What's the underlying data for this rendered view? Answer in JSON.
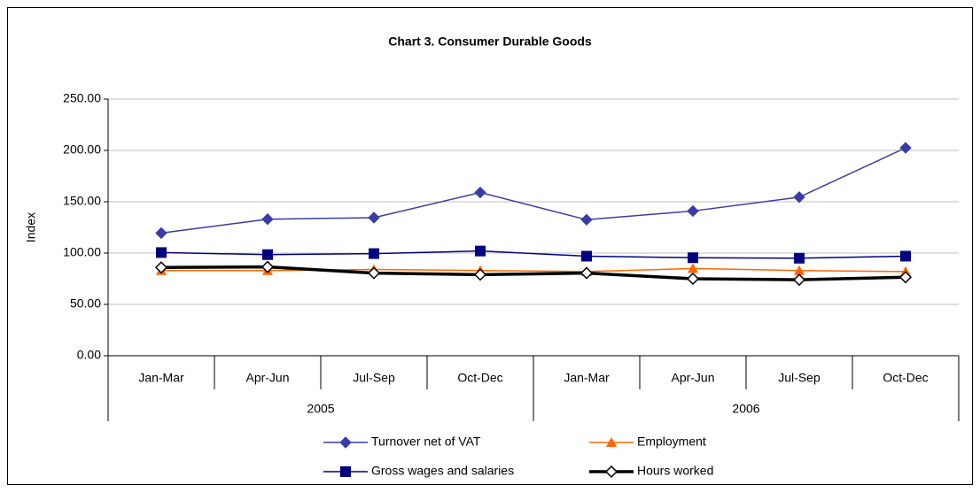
{
  "chart_data": {
    "type": "line",
    "title": "Chart 3.  Consumer Durable Goods",
    "y_label": "Index",
    "categories": [
      "Jan-Mar",
      "Apr-Jun",
      "Jul-Sep",
      "Oct-Dec",
      "Jan-Mar",
      "Apr-Jun",
      "Jul-Sep",
      "Oct-Dec"
    ],
    "category_groups": [
      "2005",
      "2006"
    ],
    "series": [
      {
        "name": "Turnover net of VAT",
        "color": "#3b3ba8",
        "marker": "diamond",
        "values": [
          119.5,
          133,
          134.5,
          159,
          132.5,
          141,
          154.5,
          202.5
        ]
      },
      {
        "name": "Employment",
        "color": "#ff6600",
        "marker": "triangle",
        "values": [
          83,
          83,
          84,
          83,
          82,
          85,
          83,
          82
        ]
      },
      {
        "name": "Gross wages and salaries",
        "color": "#000080",
        "marker": "square",
        "values": [
          100.5,
          98.5,
          99.5,
          102,
          97,
          95.5,
          95,
          97
        ]
      },
      {
        "name": "Hours worked",
        "color": "#000000",
        "marker": "open-diamond",
        "values": [
          86,
          86.5,
          80.5,
          79,
          80.5,
          75,
          74,
          76.5
        ]
      }
    ],
    "ylim": [
      0,
      250
    ],
    "yticks": [
      {
        "value": 0,
        "label": "0.00"
      },
      {
        "value": 50,
        "label": "50.00"
      },
      {
        "value": 100,
        "label": "100.00"
      },
      {
        "value": 150,
        "label": "150.00"
      },
      {
        "value": 200,
        "label": "200.00"
      },
      {
        "value": 250,
        "label": "250.00"
      }
    ],
    "grid": true,
    "legend": "bottom"
  }
}
